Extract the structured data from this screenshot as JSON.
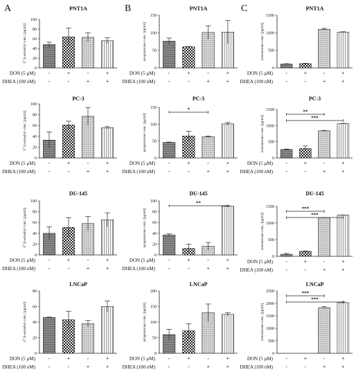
{
  "panel_letters": [
    "A",
    "B",
    "C"
  ],
  "treatment_rows": {
    "row1_label": "DON (5 µM)",
    "row2_label": "DHEA (100 nM)",
    "row1_marks": [
      "-",
      "+",
      "-",
      "+"
    ],
    "row2_marks": [
      "-",
      "-",
      "+",
      "+"
    ]
  },
  "chart_data": [
    {
      "id": "A-PNT1A",
      "type": "bar",
      "title": "PNT1A",
      "ylabel": "17 β-estradiol conc. [pg/ml]",
      "ylim": [
        0,
        100
      ],
      "yticks": [
        0,
        20,
        40,
        60,
        80,
        100
      ],
      "categories": [
        "Control",
        "DON",
        "DHEA",
        "DON+DHEA"
      ],
      "values": [
        48,
        64,
        63,
        56
      ],
      "errors": [
        5,
        18,
        9,
        6
      ],
      "significance": []
    },
    {
      "id": "B-PNT1A",
      "type": "bar",
      "title": "PNT1A",
      "ylabel": "progesterone conc. [pg/ml]",
      "ylim": [
        0,
        150
      ],
      "yticks": [
        0,
        50,
        100,
        150
      ],
      "categories": [
        "Control",
        "DON",
        "DHEA",
        "DON+DHEA"
      ],
      "values": [
        76,
        60,
        101,
        102
      ],
      "errors": [
        9,
        1,
        19,
        33
      ],
      "significance": []
    },
    {
      "id": "C-PNT1A",
      "type": "bar",
      "title": "PNT1A",
      "ylabel": "testosterone conc. [pg/ml]",
      "ylim": [
        0,
        1500
      ],
      "yticks": [
        0,
        500,
        1000,
        1500
      ],
      "categories": [
        "Control",
        "DON",
        "DHEA",
        "DON+DHEA"
      ],
      "values": [
        110,
        120,
        1100,
        1020
      ],
      "errors": [
        10,
        12,
        25,
        10
      ],
      "significance": []
    },
    {
      "id": "A-PC-3",
      "type": "bar",
      "title": "PC-3",
      "ylabel": "17 β-estradiol conc. [pg/ml]",
      "ylim": [
        0,
        100
      ],
      "yticks": [
        0,
        20,
        40,
        60,
        80,
        100
      ],
      "categories": [
        "Control",
        "DON",
        "DHEA",
        "DON+DHEA"
      ],
      "values": [
        33,
        61,
        77,
        56
      ],
      "errors": [
        15,
        7,
        16,
        2
      ],
      "significance": []
    },
    {
      "id": "B-PC-3",
      "type": "bar",
      "title": "PC-3",
      "ylabel": "progesterone conc. [pg/ml]",
      "ylim": [
        0,
        150
      ],
      "yticks": [
        0,
        50,
        100,
        150
      ],
      "categories": [
        "Control",
        "DON",
        "DHEA",
        "DON+DHEA"
      ],
      "values": [
        46,
        65,
        63,
        101
      ],
      "errors": [
        1,
        14,
        2,
        4
      ],
      "significance": [
        {
          "from": 0,
          "to": 2,
          "label": "*"
        }
      ]
    },
    {
      "id": "C-PC-3",
      "type": "bar",
      "title": "PC-3",
      "ylabel": "testosterone conc. [pg/ml]",
      "ylim": [
        0,
        1500
      ],
      "yticks": [
        0,
        500,
        1000,
        1500
      ],
      "categories": [
        "Control",
        "DON",
        "DHEA",
        "DON+DHEA"
      ],
      "values": [
        260,
        290,
        840,
        1060
      ],
      "errors": [
        15,
        80,
        10,
        10
      ],
      "significance": [
        {
          "from": 0,
          "to": 2,
          "label": "**"
        },
        {
          "from": 0,
          "to": 3,
          "label": "***"
        }
      ]
    },
    {
      "id": "A-DU-145",
      "type": "bar",
      "title": "DU-145",
      "ylabel": "17 β-estradiol conc. [pg/ml]",
      "ylim": [
        0,
        100
      ],
      "yticks": [
        0,
        20,
        40,
        60,
        80,
        100
      ],
      "categories": [
        "Control",
        "DON",
        "DHEA",
        "DON+DHEA"
      ],
      "values": [
        40,
        51,
        58,
        65
      ],
      "errors": [
        12,
        18,
        13,
        13
      ],
      "significance": []
    },
    {
      "id": "B-DU-145",
      "type": "bar",
      "title": "DU-145",
      "ylabel": "progesterone conc. [pg/ml]",
      "ylim": [
        0,
        100
      ],
      "yticks": [
        0,
        20,
        40,
        60,
        80,
        100
      ],
      "categories": [
        "Control",
        "DON",
        "DHEA",
        "DON+DHEA"
      ],
      "values": [
        37,
        12,
        16,
        90
      ],
      "errors": [
        2,
        8,
        7,
        1
      ],
      "significance": [
        {
          "from": 0,
          "to": 3,
          "label": "**"
        }
      ]
    },
    {
      "id": "C-DU-145",
      "type": "bar",
      "title": "DU-145",
      "ylabel": "testosterone conc. [pg/ml]",
      "ylim": [
        0,
        1500
      ],
      "yticks": [
        0,
        500,
        1000,
        1500
      ],
      "categories": [
        "Control",
        "DON",
        "DHEA",
        "DON+DHEA"
      ],
      "values": [
        60,
        150,
        1160,
        1240
      ],
      "errors": [
        25,
        10,
        5,
        5
      ],
      "significance": [
        {
          "from": 0,
          "to": 2,
          "label": "***"
        },
        {
          "from": 0,
          "to": 3,
          "label": "***"
        }
      ]
    },
    {
      "id": "A-LNCaP",
      "type": "bar",
      "title": "LNCaP",
      "ylabel": "17 β-estradiol conc. [pg/ml]",
      "ylim": [
        0,
        80
      ],
      "yticks": [
        0,
        20,
        40,
        60,
        80
      ],
      "categories": [
        "Control",
        "DON",
        "DHEA",
        "DON+DHEA"
      ],
      "values": [
        46,
        43,
        38,
        60
      ],
      "errors": [
        0.5,
        11,
        4,
        7
      ],
      "significance": []
    },
    {
      "id": "B-LNCaP",
      "type": "bar",
      "title": "LNCaP",
      "ylabel": "progesterone conc. [pg/ml]",
      "ylim": [
        0,
        200
      ],
      "yticks": [
        0,
        50,
        100,
        150,
        200
      ],
      "categories": [
        "Control",
        "DON",
        "DHEA",
        "DON+DHEA"
      ],
      "values": [
        60,
        72,
        130,
        125
      ],
      "errors": [
        17,
        23,
        28,
        5
      ],
      "significance": []
    },
    {
      "id": "C-LNCaP",
      "type": "bar",
      "title": "LNCaP",
      "ylabel": "testosterone conc. [pg/ml]",
      "ylim": [
        0,
        2500
      ],
      "yticks": [
        0,
        500,
        1000,
        1500,
        2000,
        2500
      ],
      "categories": [
        "Control",
        "DON",
        "DHEA",
        "DON+DHEA"
      ],
      "values": [
        0,
        0,
        1830,
        2030
      ],
      "errors": [
        0,
        0,
        40,
        30
      ],
      "significance": [
        {
          "from": 0,
          "to": 2,
          "label": "***"
        },
        {
          "from": 0,
          "to": 3,
          "label": "***"
        }
      ]
    }
  ]
}
